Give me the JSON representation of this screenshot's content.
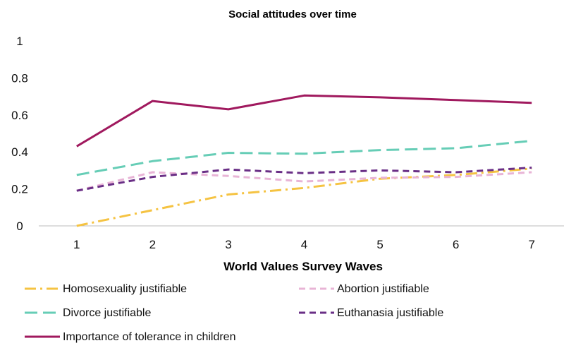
{
  "chart_data": {
    "type": "line",
    "title": "Social attitudes over time",
    "xlabel": "World Values Survey Waves",
    "ylabel": "",
    "x": [
      1,
      2,
      3,
      4,
      5,
      6,
      7
    ],
    "x_tick_labels": [
      "1",
      "2",
      "3",
      "4",
      "5",
      "6",
      "7"
    ],
    "y_tick_labels": [
      "0",
      "0.2",
      "0.4",
      "0.6",
      "0.8",
      "1"
    ],
    "ylim": [
      0,
      1
    ],
    "grid": false,
    "legend_position": "bottom",
    "series": [
      {
        "name": "Homosexuality justifiable",
        "color": "#f5c342",
        "dash": "dash-dot",
        "values": [
          0.0,
          0.085,
          0.17,
          0.205,
          0.255,
          0.275,
          0.31
        ]
      },
      {
        "name": "Abortion justifiable",
        "color": "#e8b4d6",
        "dash": "dash",
        "values": [
          0.19,
          0.29,
          0.27,
          0.24,
          0.26,
          0.265,
          0.29
        ]
      },
      {
        "name": "Divorce justifiable",
        "color": "#66cdb6",
        "dash": "long-dash",
        "values": [
          0.275,
          0.35,
          0.395,
          0.39,
          0.41,
          0.42,
          0.46
        ]
      },
      {
        "name": "Euthanasia justifiable",
        "color": "#6a2f86",
        "dash": "dash",
        "values": [
          0.19,
          0.265,
          0.305,
          0.285,
          0.3,
          0.29,
          0.315
        ]
      },
      {
        "name": "Importance of tolerance in children",
        "color": "#a0195e",
        "dash": "solid",
        "values": [
          0.43,
          0.675,
          0.63,
          0.705,
          0.695,
          0.68,
          0.665
        ]
      }
    ]
  }
}
